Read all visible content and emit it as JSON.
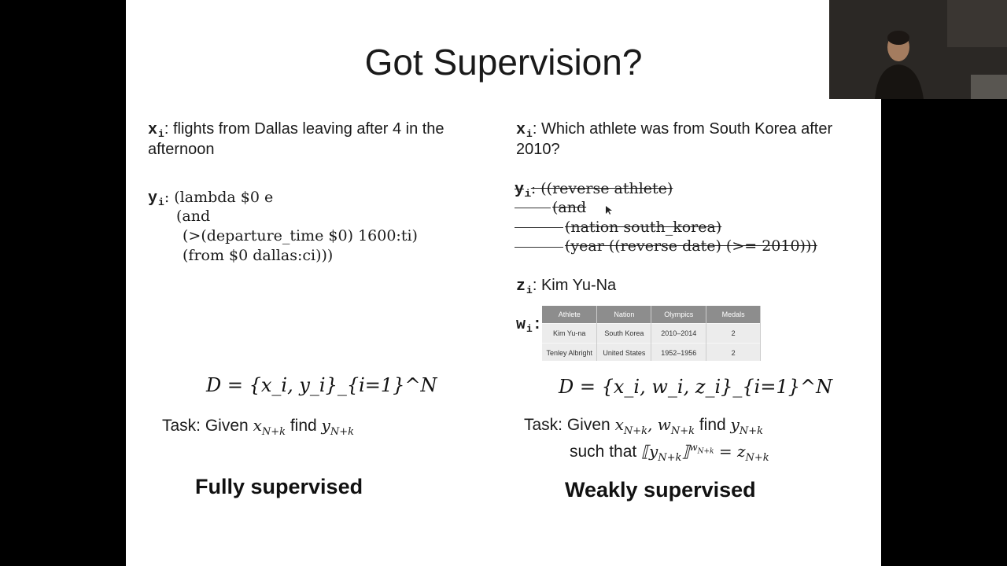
{
  "title": "Got Supervision?",
  "left": {
    "x_label": "x",
    "x_sub": "i",
    "x_text_line1": ": flights from Dallas leaving after 4 in the",
    "x_text_line2": "afternoon",
    "y_label": "y",
    "y_sub": "i",
    "y_lines": [
      ": (lambda $0 e",
      "(and",
      "(>(departure_time $0) 1600:ti)",
      "(from $0 dallas:ci)))"
    ],
    "dataset": "D = {x_i, y_i}_{i=1}^N",
    "task_prefix": "Task: Given",
    "task_mid": "find",
    "heading": "Fully supervised"
  },
  "right": {
    "x_label": "x",
    "x_sub": "i",
    "x_text_line1": ": Which athlete was from South Korea after",
    "x_text_line2": "2010?",
    "y_label": "y",
    "y_sub": "i",
    "y_lines": [
      ": ((reverse athlete)",
      "(and",
      "(nation south_korea)",
      "(year ((reverse date) (>= 2010)))"
    ],
    "z_label": "z",
    "z_sub": "i",
    "z_text": ": Kim Yu-Na",
    "w_label": "w",
    "w_sub": "i",
    "w_colon": ":",
    "table": {
      "headers": [
        "Athlete",
        "Nation",
        "Olympics",
        "Medals"
      ],
      "rows": [
        [
          "Kim Yu-na",
          "South Korea",
          "2010–2014",
          "2"
        ],
        [
          "Tenley Albright",
          "United States",
          "1952–1956",
          "2"
        ]
      ]
    },
    "dataset": "D = {x_i, w_i, z_i}_{i=1}^N",
    "task_prefix": "Task: Given",
    "task_mid": "find",
    "such_that": "such that",
    "heading": "Weakly supervised"
  }
}
